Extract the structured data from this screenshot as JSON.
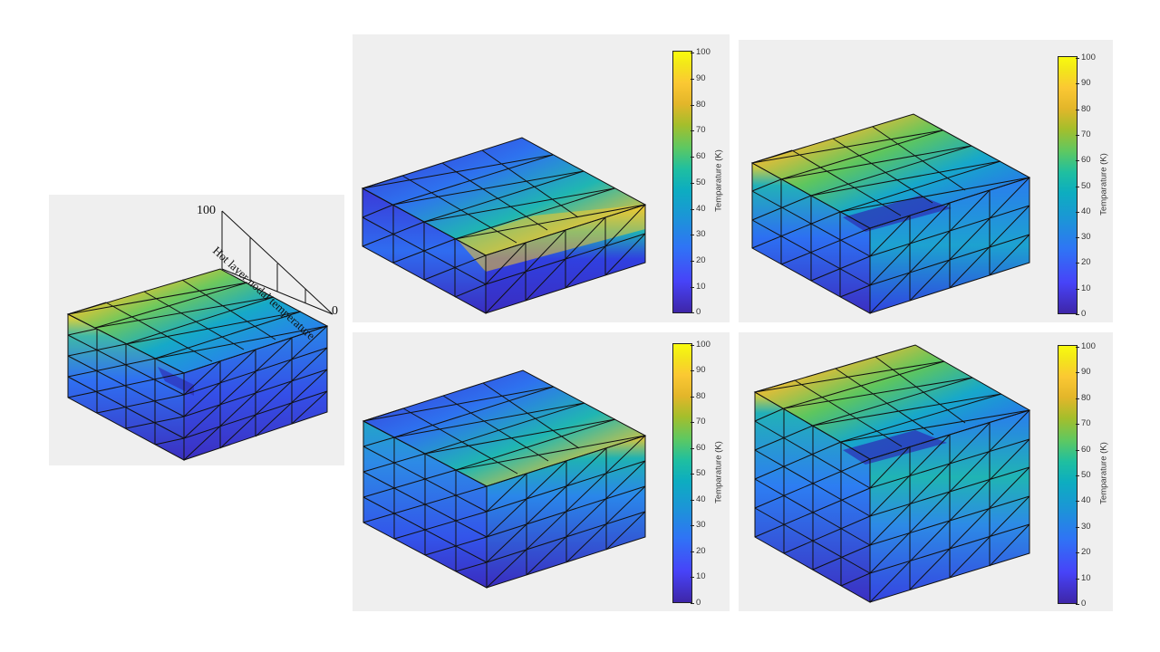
{
  "main_figure": {
    "scale_max": "100",
    "scale_min": "0",
    "scale_label": "Hot layer nodal temperature"
  },
  "colorbar": {
    "label": "Temparature (K)",
    "ticks": [
      "100",
      "90",
      "80",
      "70",
      "60",
      "50",
      "40",
      "30",
      "20",
      "10",
      "0"
    ]
  },
  "panels": [
    {
      "id": "top-middle",
      "hot_face": "front-right-band"
    },
    {
      "id": "top-right",
      "hot_face": "back-left-edge"
    },
    {
      "id": "bottom-middle",
      "hot_face": "front-right-band"
    },
    {
      "id": "bottom-right",
      "hot_face": "back-left-edge"
    }
  ]
}
